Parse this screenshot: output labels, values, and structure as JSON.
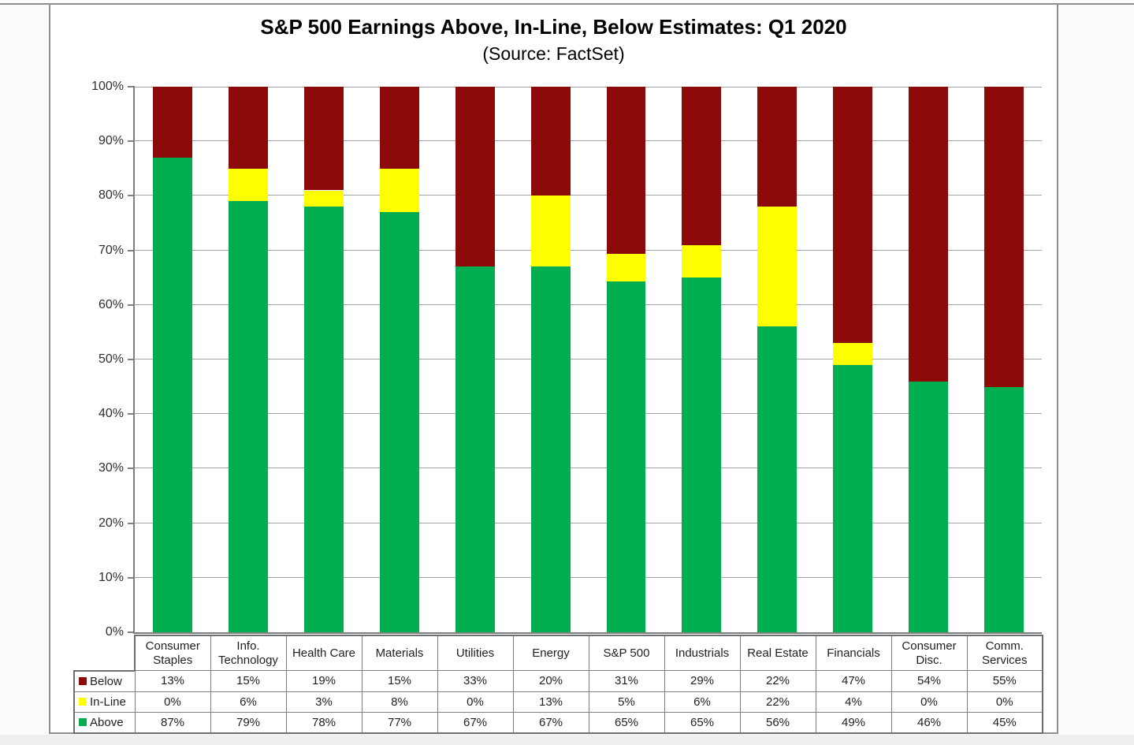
{
  "header": {
    "title": "S&P 500 Earnings Above, In-Line, Below Estimates: Q1 2020",
    "subtitle": "(Source: FactSet)"
  },
  "chart_data": {
    "type": "bar",
    "stacked": true,
    "title": "S&P 500 Earnings Above, In-Line, Below Estimates: Q1 2020",
    "subtitle": "(Source: FactSet)",
    "categories": [
      "Consumer Staples",
      "Info. Technology",
      "Health Care",
      "Materials",
      "Utilities",
      "Energy",
      "S&P 500",
      "Industrials",
      "Real Estate",
      "Financials",
      "Consumer Disc.",
      "Comm. Services"
    ],
    "series": [
      {
        "name": "Below",
        "color": "#8e0909",
        "values": [
          13,
          15,
          19,
          15,
          33,
          20,
          31,
          29,
          22,
          47,
          54,
          55
        ]
      },
      {
        "name": "In-Line",
        "color": "#ffff00",
        "values": [
          0,
          6,
          3,
          8,
          0,
          13,
          5,
          6,
          22,
          4,
          0,
          0
        ]
      },
      {
        "name": "Above",
        "color": "#00ad4f",
        "values": [
          87,
          79,
          78,
          77,
          67,
          67,
          65,
          65,
          56,
          49,
          46,
          45
        ]
      }
    ],
    "stack_order_bottom_to_top": [
      "Above",
      "In-Line",
      "Below"
    ],
    "ylim": [
      0,
      100
    ],
    "y_ticks": [
      "0%",
      "10%",
      "20%",
      "30%",
      "40%",
      "50%",
      "60%",
      "70%",
      "80%",
      "90%",
      "100%"
    ],
    "grid": "horizontal",
    "legend_position": "table-left-column",
    "value_suffix": "%"
  },
  "colors": {
    "below": "#8e0909",
    "inline": "#ffff00",
    "above": "#00ad4f",
    "gridline": "#a6a6a6",
    "axis": "#7f7f7f",
    "box_border": "#8f8f8f"
  }
}
